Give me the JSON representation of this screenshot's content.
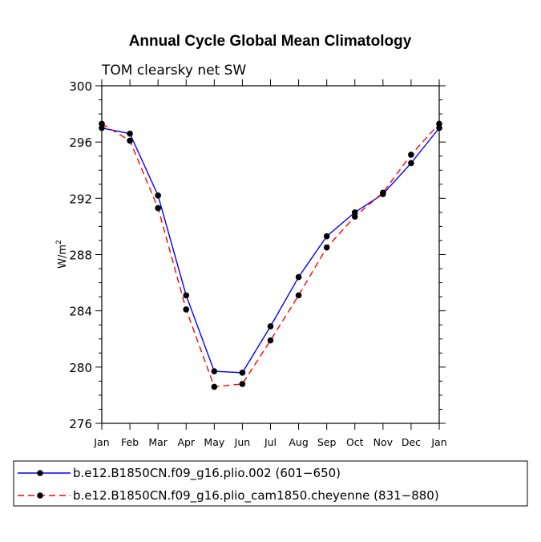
{
  "chart_data": {
    "type": "line",
    "title": "Annual Cycle Global Mean Climatology",
    "subtitle": "TOM clearsky net SW",
    "ylabel_base": "W/m",
    "ylabel_sup": "2",
    "xlabel": "",
    "categories": [
      "Jan",
      "Feb",
      "Mar",
      "Apr",
      "May",
      "Jun",
      "Jul",
      "Aug",
      "Sep",
      "Oct",
      "Nov",
      "Dec",
      "Jan"
    ],
    "ylim": [
      276,
      300
    ],
    "yticks": [
      "276",
      "280",
      "284",
      "288",
      "292",
      "296",
      "300"
    ],
    "grid": false,
    "legend_position": "bottom",
    "series": [
      {
        "name": "b.e12.B1850CN.f09_g16.plio.002 (601−650)",
        "color": "#0000ff",
        "dash": "solid",
        "values": [
          297.0,
          296.6,
          292.2,
          285.1,
          279.7,
          279.6,
          282.9,
          286.4,
          289.3,
          291.0,
          292.3,
          294.5,
          297.0
        ]
      },
      {
        "name": "b.e12.B1850CN.f09_g16.plio_cam1850.cheyenne (831−880)",
        "color": "#ff0000",
        "dash": "dashed",
        "values": [
          297.3,
          296.1,
          291.3,
          284.1,
          278.6,
          278.8,
          281.9,
          285.1,
          288.5,
          290.7,
          292.4,
          295.1,
          297.3
        ]
      }
    ]
  }
}
